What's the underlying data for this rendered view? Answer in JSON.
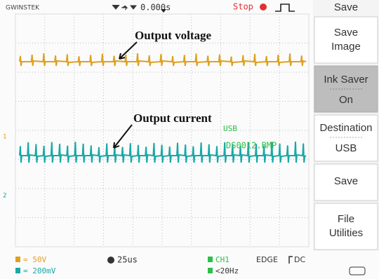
{
  "header": {
    "brand": "GWINSTEK",
    "trigger_position": "0.000s",
    "run_state": "Stop"
  },
  "annotations": {
    "voltage": "Output voltage",
    "current": "Output current"
  },
  "overlay": {
    "device": "USB",
    "filename": "DS0012.BMP"
  },
  "channel_markers": {
    "ch1": "1",
    "ch2": "2"
  },
  "menu": {
    "title": "Save",
    "items": [
      {
        "label": "Save Image"
      },
      {
        "label": "Ink Saver",
        "value": "On"
      },
      {
        "label": "Destination",
        "value": "USB"
      },
      {
        "label": "Save"
      },
      {
        "label": "File Utilities"
      }
    ]
  },
  "status": {
    "ch1_scale": "= 50V",
    "ch2_scale": "= 200mV",
    "timebase": "25us",
    "trigger_source": "CH1",
    "trigger_type": "EDGE",
    "coupling": "DC",
    "rejection": "<20Hz"
  }
}
